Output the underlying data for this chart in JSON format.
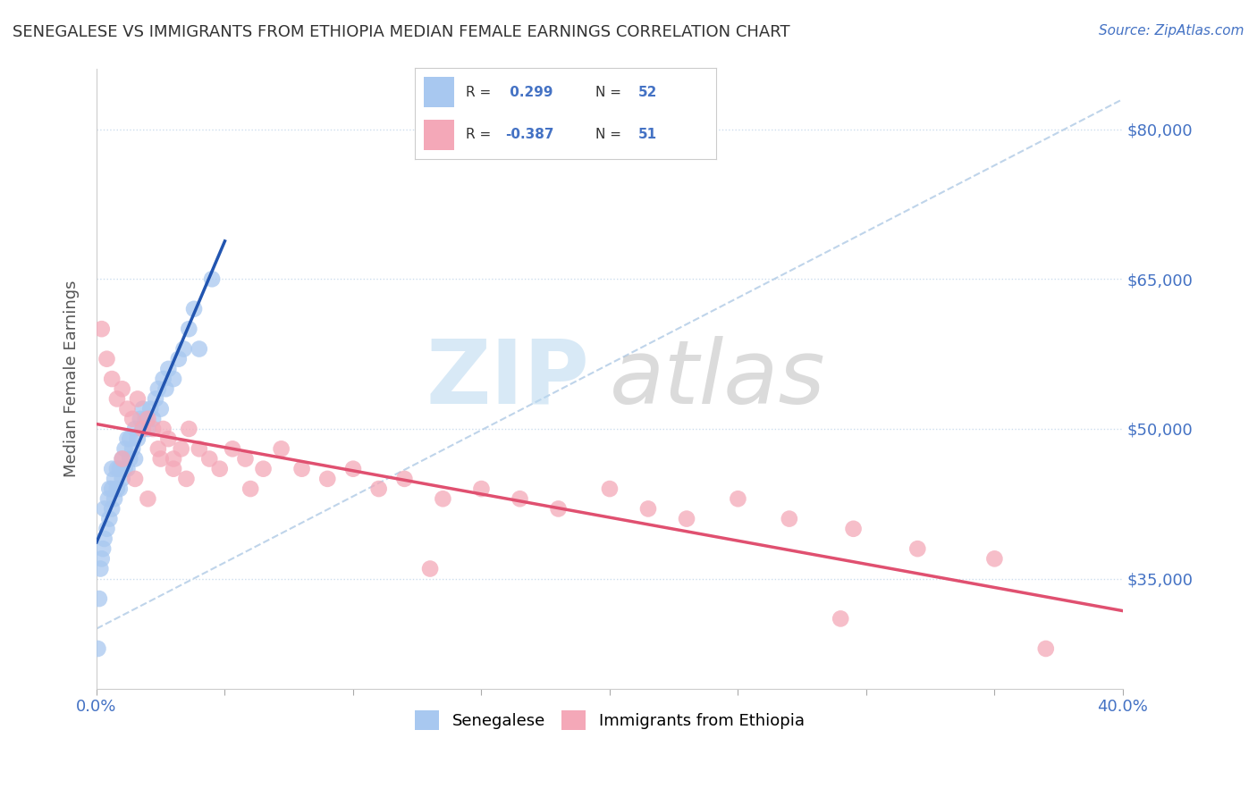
{
  "title": "SENEGALESE VS IMMIGRANTS FROM ETHIOPIA MEDIAN FEMALE EARNINGS CORRELATION CHART",
  "source": "Source: ZipAtlas.com",
  "ylabel": "Median Female Earnings",
  "y_ticks": [
    35000,
    50000,
    65000,
    80000
  ],
  "y_tick_labels": [
    "$35,000",
    "$50,000",
    "$65,000",
    "$80,000"
  ],
  "x_min": 0.0,
  "x_max": 0.4,
  "y_min": 24000,
  "y_max": 86000,
  "R_senegalese": 0.299,
  "N_senegalese": 52,
  "R_ethiopia": -0.387,
  "N_ethiopia": 51,
  "color_senegalese": "#a8c8f0",
  "color_ethiopia": "#f4a8b8",
  "line_color_senegalese": "#2255b0",
  "line_color_ethiopia": "#e05070",
  "legend_label_senegalese": "Senegalese",
  "legend_label_ethiopia": "Immigrants from Ethiopia",
  "title_color": "#333333",
  "axis_color": "#4472c4",
  "grid_color": "#ccddee",
  "ref_line_color": "#b8d0e8",
  "senegalese_x": [
    0.0005,
    0.001,
    0.0015,
    0.002,
    0.0025,
    0.003,
    0.003,
    0.004,
    0.0045,
    0.005,
    0.005,
    0.006,
    0.006,
    0.006,
    0.007,
    0.007,
    0.008,
    0.008,
    0.009,
    0.009,
    0.01,
    0.01,
    0.011,
    0.011,
    0.012,
    0.012,
    0.013,
    0.013,
    0.014,
    0.015,
    0.015,
    0.016,
    0.017,
    0.018,
    0.018,
    0.019,
    0.02,
    0.021,
    0.022,
    0.023,
    0.024,
    0.025,
    0.026,
    0.027,
    0.028,
    0.03,
    0.032,
    0.034,
    0.036,
    0.038,
    0.04,
    0.045
  ],
  "senegalese_y": [
    28000,
    33000,
    36000,
    37000,
    38000,
    39000,
    42000,
    40000,
    43000,
    41000,
    44000,
    42000,
    44000,
    46000,
    43000,
    45000,
    44000,
    46000,
    44000,
    46000,
    45000,
    47000,
    46000,
    48000,
    46000,
    49000,
    47000,
    49000,
    48000,
    47000,
    50000,
    49000,
    51000,
    50000,
    52000,
    51000,
    50000,
    52000,
    51000,
    53000,
    54000,
    52000,
    55000,
    54000,
    56000,
    55000,
    57000,
    58000,
    60000,
    62000,
    58000,
    65000
  ],
  "ethiopia_x": [
    0.002,
    0.004,
    0.006,
    0.008,
    0.01,
    0.012,
    0.014,
    0.016,
    0.018,
    0.02,
    0.022,
    0.024,
    0.026,
    0.028,
    0.03,
    0.033,
    0.036,
    0.04,
    0.044,
    0.048,
    0.053,
    0.058,
    0.065,
    0.072,
    0.08,
    0.09,
    0.1,
    0.11,
    0.12,
    0.135,
    0.15,
    0.165,
    0.18,
    0.2,
    0.215,
    0.23,
    0.25,
    0.27,
    0.295,
    0.32,
    0.35,
    0.37,
    0.01,
    0.015,
    0.02,
    0.025,
    0.03,
    0.035,
    0.06,
    0.13,
    0.29
  ],
  "ethiopia_y": [
    60000,
    57000,
    55000,
    53000,
    54000,
    52000,
    51000,
    53000,
    50000,
    51000,
    50000,
    48000,
    50000,
    49000,
    47000,
    48000,
    50000,
    48000,
    47000,
    46000,
    48000,
    47000,
    46000,
    48000,
    46000,
    45000,
    46000,
    44000,
    45000,
    43000,
    44000,
    43000,
    42000,
    44000,
    42000,
    41000,
    43000,
    41000,
    40000,
    38000,
    37000,
    28000,
    47000,
    45000,
    43000,
    47000,
    46000,
    45000,
    44000,
    36000,
    31000
  ]
}
